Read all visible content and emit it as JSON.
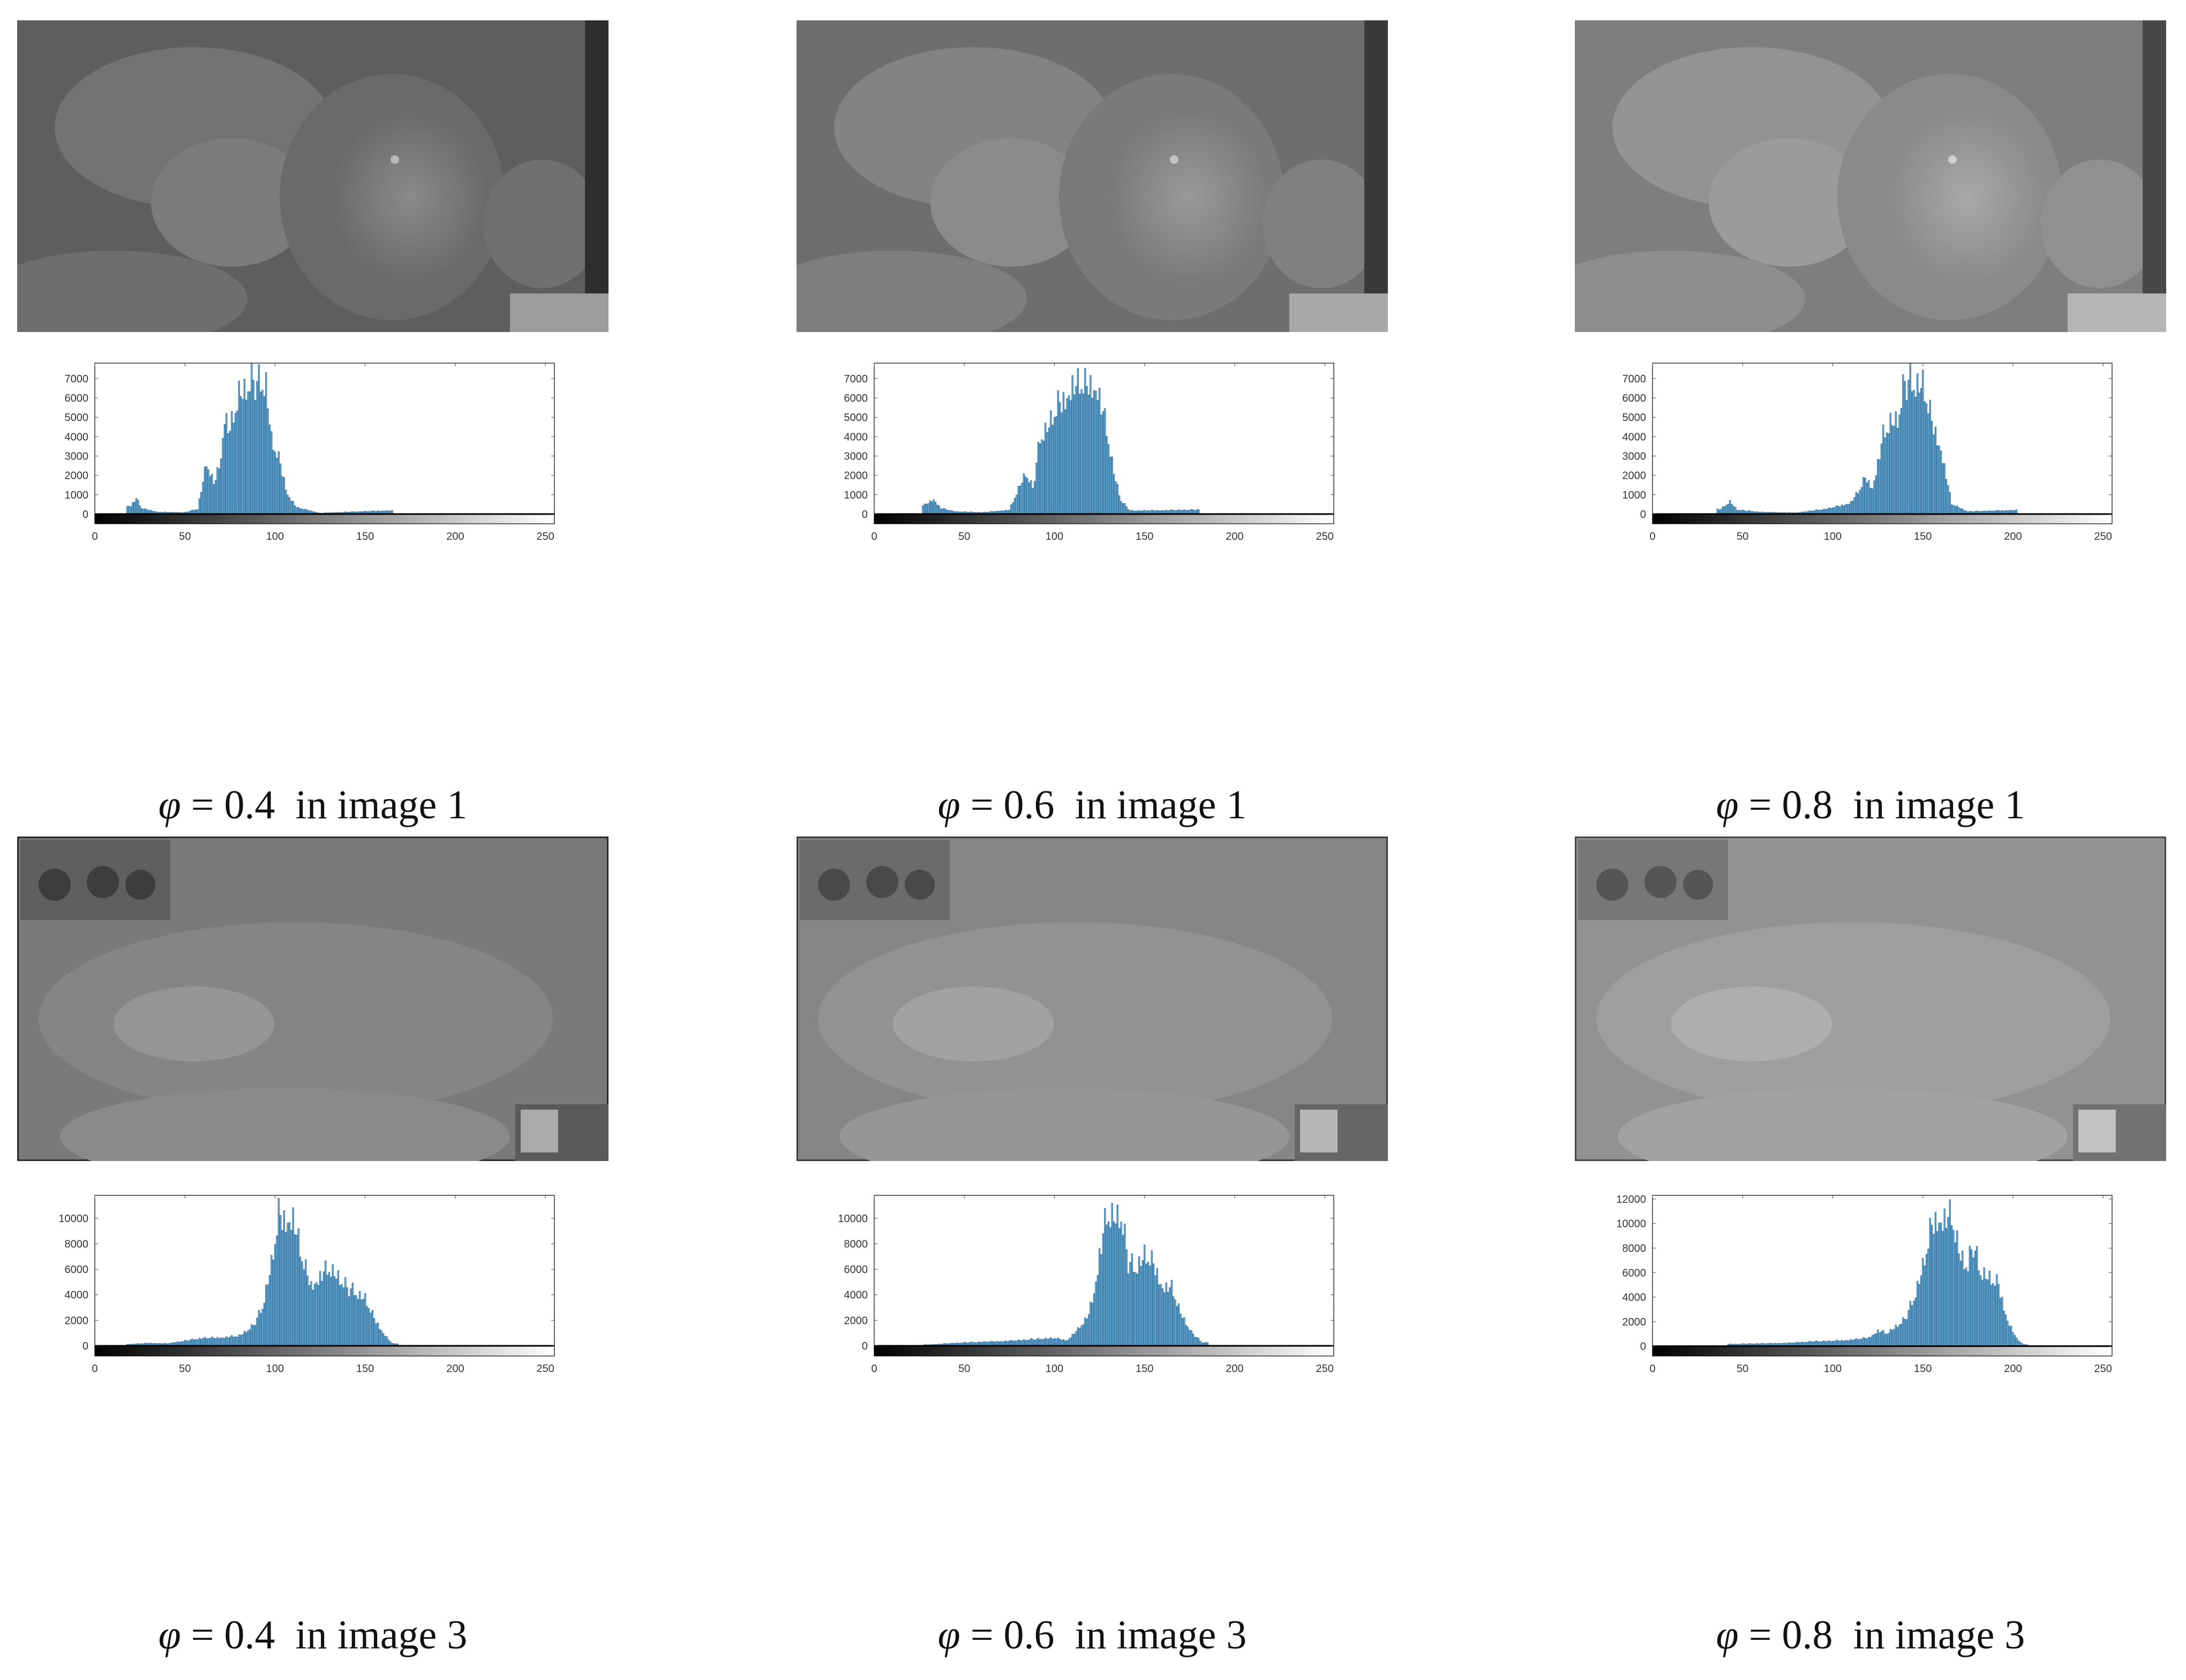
{
  "colors": {
    "bar_fill": "#5aa9d6",
    "bar_edge": "#1f4e79",
    "axis": "#000000"
  },
  "panels": [
    {
      "caption": {
        "symbol": "φ",
        "text": "= 0.4  in image 1"
      },
      "image": {
        "description_tone": "dark gray",
        "tone": "#6b6b6b"
      },
      "chart_data": {
        "type": "bar",
        "xlim": [
          0,
          255
        ],
        "ylim": [
          -500,
          7800
        ],
        "xticks": [
          0,
          50,
          100,
          150,
          200,
          250
        ],
        "yticks": [
          0,
          1000,
          2000,
          3000,
          4000,
          5000,
          6000,
          7000
        ],
        "peaks": [
          [
            20,
            500
          ],
          [
            23,
            950
          ],
          [
            26,
            350
          ],
          [
            35,
            120
          ],
          [
            50,
            100
          ],
          [
            57,
            300
          ],
          [
            62,
            3100
          ],
          [
            66,
            1800
          ],
          [
            70,
            3500
          ],
          [
            72,
            6100
          ],
          [
            75,
            5000
          ],
          [
            80,
            7200
          ],
          [
            86,
            7800
          ],
          [
            90,
            7800
          ],
          [
            95,
            7800
          ],
          [
            98,
            4500
          ],
          [
            103,
            3000
          ],
          [
            107,
            1200
          ],
          [
            112,
            400
          ],
          [
            125,
            60
          ],
          [
            160,
            200
          ]
        ],
        "min_x": 18,
        "max_x": 165,
        "xlabel": "",
        "ylabel": "",
        "title": "",
        "colorbar": "grayscale 0-255"
      }
    },
    {
      "caption": {
        "symbol": "φ",
        "text": "= 0.6  in image 1"
      },
      "image": {
        "tone": "#7a7a7a"
      },
      "chart_data": {
        "type": "bar",
        "xlim": [
          0,
          255
        ],
        "ylim": [
          -500,
          7800
        ],
        "xticks": [
          0,
          50,
          100,
          150,
          200,
          250
        ],
        "yticks": [
          0,
          1000,
          2000,
          3000,
          4000,
          5000,
          6000,
          7000
        ],
        "peaks": [
          [
            28,
            550
          ],
          [
            33,
            900
          ],
          [
            37,
            350
          ],
          [
            45,
            150
          ],
          [
            60,
            100
          ],
          [
            75,
            250
          ],
          [
            84,
            2500
          ],
          [
            88,
            1500
          ],
          [
            92,
            4500
          ],
          [
            96,
            5200
          ],
          [
            102,
            6500
          ],
          [
            110,
            7800
          ],
          [
            116,
            7800
          ],
          [
            120,
            7800
          ],
          [
            124,
            7800
          ],
          [
            129,
            5000
          ],
          [
            133,
            2500
          ],
          [
            137,
            800
          ],
          [
            142,
            200
          ],
          [
            175,
            250
          ]
        ],
        "min_x": 27,
        "max_x": 180,
        "xlabel": "",
        "ylabel": "",
        "title": "",
        "colorbar": "grayscale 0-255"
      }
    },
    {
      "caption": {
        "symbol": "φ",
        "text": "= 0.8  in image 1"
      },
      "image": {
        "tone": "#8a8a8a"
      },
      "chart_data": {
        "type": "bar",
        "xlim": [
          0,
          255
        ],
        "ylim": [
          -500,
          7800
        ],
        "xticks": [
          0,
          50,
          100,
          150,
          200,
          250
        ],
        "yticks": [
          0,
          1000,
          2000,
          3000,
          4000,
          5000,
          6000,
          7000
        ],
        "peaks": [
          [
            38,
            300
          ],
          [
            43,
            750
          ],
          [
            47,
            250
          ],
          [
            60,
            120
          ],
          [
            80,
            80
          ],
          [
            96,
            300
          ],
          [
            104,
            500
          ],
          [
            110,
            700
          ],
          [
            115,
            1500
          ],
          [
            118,
            2200
          ],
          [
            122,
            1600
          ],
          [
            128,
            4700
          ],
          [
            132,
            5500
          ],
          [
            136,
            5700
          ],
          [
            140,
            7800
          ],
          [
            145,
            7800
          ],
          [
            150,
            7800
          ],
          [
            155,
            5600
          ],
          [
            160,
            4000
          ],
          [
            166,
            600
          ],
          [
            175,
            150
          ],
          [
            198,
            230
          ]
        ],
        "min_x": 36,
        "max_x": 202,
        "xlabel": "",
        "ylabel": "",
        "title": "",
        "colorbar": "grayscale 0-255"
      }
    },
    {
      "caption": {
        "symbol": "φ",
        "text": "= 0.4  in image 3"
      },
      "image": {
        "tone": "#808080"
      },
      "chart_data": {
        "type": "bar",
        "xlim": [
          0,
          255
        ],
        "ylim": [
          -800,
          11800
        ],
        "xticks": [
          0,
          50,
          100,
          150,
          200,
          250
        ],
        "yticks": [
          0,
          2000,
          4000,
          6000,
          8000,
          10000
        ],
        "peaks": [
          [
            20,
            150
          ],
          [
            30,
            250
          ],
          [
            40,
            200
          ],
          [
            50,
            450
          ],
          [
            60,
            700
          ],
          [
            70,
            750
          ],
          [
            80,
            900
          ],
          [
            88,
            1800
          ],
          [
            93,
            3500
          ],
          [
            98,
            7500
          ],
          [
            102,
            11800
          ],
          [
            106,
            11800
          ],
          [
            110,
            11800
          ],
          [
            115,
            8000
          ],
          [
            120,
            5500
          ],
          [
            125,
            6500
          ],
          [
            130,
            7000
          ],
          [
            135,
            6300
          ],
          [
            140,
            5200
          ],
          [
            145,
            4800
          ],
          [
            150,
            4300
          ],
          [
            155,
            2500
          ],
          [
            160,
            1200
          ],
          [
            165,
            200
          ]
        ],
        "min_x": 18,
        "max_x": 168,
        "xlabel": "",
        "ylabel": "",
        "title": "",
        "colorbar": "grayscale 0-255"
      }
    },
    {
      "caption": {
        "symbol": "φ",
        "text": "= 0.6  in image 3"
      },
      "image": {
        "tone": "#8c8c8c"
      },
      "chart_data": {
        "type": "bar",
        "xlim": [
          0,
          255
        ],
        "ylim": [
          -800,
          11800
        ],
        "xticks": [
          0,
          50,
          100,
          150,
          200,
          250
        ],
        "yticks": [
          0,
          2000,
          4000,
          6000,
          8000,
          10000
        ],
        "peaks": [
          [
            30,
            100
          ],
          [
            45,
            250
          ],
          [
            60,
            350
          ],
          [
            75,
            450
          ],
          [
            90,
            600
          ],
          [
            100,
            700
          ],
          [
            107,
            500
          ],
          [
            113,
            1500
          ],
          [
            118,
            2500
          ],
          [
            122,
            5000
          ],
          [
            125,
            8500
          ],
          [
            129,
            11800
          ],
          [
            133,
            11800
          ],
          [
            137,
            11800
          ],
          [
            141,
            7500
          ],
          [
            145,
            7000
          ],
          [
            150,
            8300
          ],
          [
            155,
            7500
          ],
          [
            160,
            5500
          ],
          [
            165,
            5300
          ],
          [
            170,
            3000
          ],
          [
            176,
            1200
          ],
          [
            182,
            300
          ]
        ],
        "min_x": 28,
        "max_x": 185,
        "xlabel": "",
        "ylabel": "",
        "title": "",
        "colorbar": "grayscale 0-255"
      }
    },
    {
      "caption": {
        "symbol": "φ",
        "text": "= 0.8  in image 3"
      },
      "image": {
        "tone": "#989898"
      },
      "chart_data": {
        "type": "bar",
        "xlim": [
          0,
          255
        ],
        "ylim": [
          -800,
          12300
        ],
        "xticks": [
          0,
          50,
          100,
          150,
          200,
          250
        ],
        "yticks": [
          0,
          2000,
          4000,
          6000,
          8000,
          10000,
          12000
        ],
        "peaks": [
          [
            45,
            200
          ],
          [
            60,
            250
          ],
          [
            75,
            300
          ],
          [
            90,
            450
          ],
          [
            100,
            500
          ],
          [
            110,
            600
          ],
          [
            120,
            800
          ],
          [
            125,
            1500
          ],
          [
            130,
            1200
          ],
          [
            140,
            2500
          ],
          [
            145,
            4500
          ],
          [
            150,
            7500
          ],
          [
            155,
            11500
          ],
          [
            158,
            12300
          ],
          [
            162,
            12300
          ],
          [
            166,
            12300
          ],
          [
            170,
            9000
          ],
          [
            175,
            7500
          ],
          [
            178,
            9500
          ],
          [
            182,
            7000
          ],
          [
            187,
            6500
          ],
          [
            192,
            5800
          ],
          [
            197,
            2500
          ],
          [
            202,
            700
          ],
          [
            206,
            150
          ]
        ],
        "min_x": 42,
        "max_x": 208,
        "xlabel": "",
        "ylabel": "",
        "title": "",
        "colorbar": "grayscale 0-255"
      }
    }
  ]
}
